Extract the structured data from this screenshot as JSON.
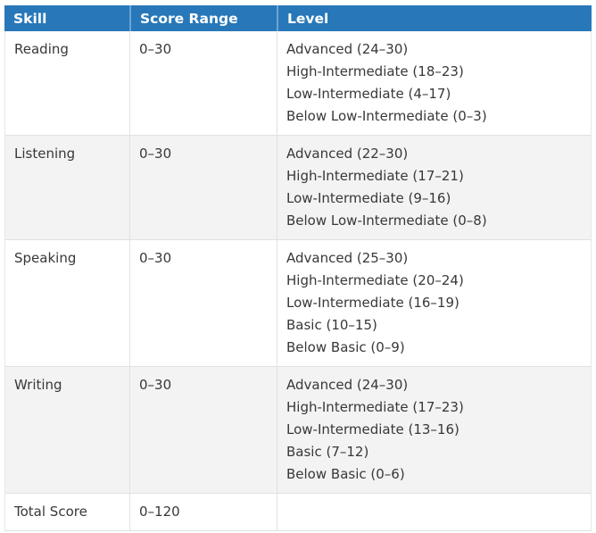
{
  "chart_data": {
    "type": "table",
    "columns": [
      "Skill",
      "Score Range",
      "Level"
    ],
    "rows": [
      {
        "skill": "Reading",
        "score_range": "0–30",
        "levels": [
          "Advanced (24–30)",
          "High-Intermediate (18–23)",
          "Low-Intermediate (4–17)",
          "Below Low-Intermediate (0–3)"
        ]
      },
      {
        "skill": "Listening",
        "score_range": "0–30",
        "levels": [
          "Advanced (22–30)",
          "High-Intermediate (17–21)",
          "Low-Intermediate (9–16)",
          "Below Low-Intermediate (0–8)"
        ]
      },
      {
        "skill": "Speaking",
        "score_range": "0–30",
        "levels": [
          "Advanced (25–30)",
          "High-Intermediate (20–24)",
          "Low-Intermediate (16–19)",
          "Basic (10–15)",
          "Below Basic (0–9)"
        ]
      },
      {
        "skill": "Writing",
        "score_range": "0–30",
        "levels": [
          "Advanced (24–30)",
          "High-Intermediate (17–23)",
          "Low-Intermediate (13–16)",
          "Basic (7–12)",
          "Below Basic (0–6)"
        ]
      },
      {
        "skill": "Total Score",
        "score_range": "0–120",
        "levels": []
      }
    ],
    "layout": {
      "header_position": "top",
      "striped_rows": true,
      "grid": true
    }
  },
  "colors": {
    "header_bg": "#2878b9",
    "header_text": "#ffffff",
    "header_divider": "#6aa5d6",
    "row_bg": "#ffffff",
    "row_alt_bg": "#f3f3f3",
    "border": "#e1e1e1",
    "body_text": "#383838"
  }
}
